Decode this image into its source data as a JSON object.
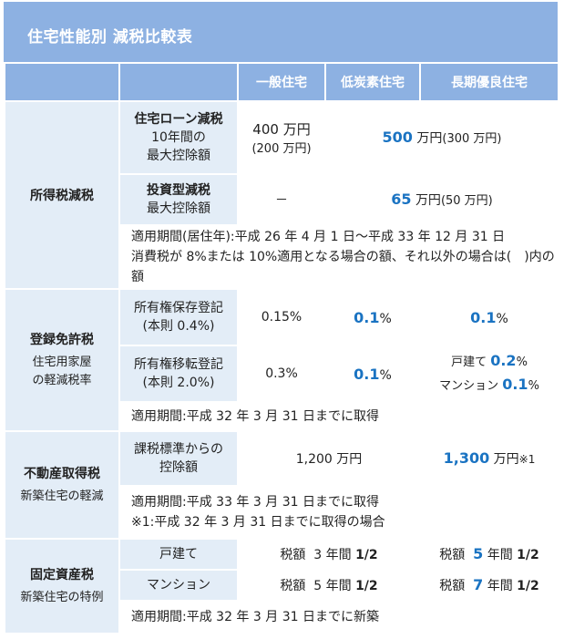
{
  "title": "住宅性能別 減税比較表",
  "headers": [
    "一般住宅",
    "低炭素住宅",
    "長期優良住宅"
  ],
  "income_tax": {
    "category": "所得税減税",
    "loan": {
      "item_title": "住宅ローン減税",
      "item_line2": "10年間の",
      "item_line3": "最大控除額",
      "general_main": "400 万円",
      "general_sub": "(200 万円)",
      "merged_num": "500",
      "merged_unit": "万円",
      "merged_paren": "(300 万円)"
    },
    "invest": {
      "item_title": "投資型減税",
      "item_line2": "最大控除額",
      "general": "－",
      "merged_num": "65",
      "merged_unit": "万円",
      "merged_paren": "(50 万円)"
    },
    "note1": "適用期間(居住年):平成 26 年 4 月 1 日〜平成 33 年 12 月 31 日",
    "note2": "消費税が 8%または 10%適用となる場合の額、それ以外の場合は(　)内の額"
  },
  "registration_tax": {
    "category": "登録免許税",
    "sub1": "住宅用家屋",
    "sub2": "の軽減税率",
    "preservation": {
      "item_line1": "所有権保存登記",
      "item_line2": "(本則 0.4%)",
      "general": "0.15%",
      "lowcarbon_num": "0.1",
      "lowcarbon_unit": "%",
      "longterm_num": "0.1",
      "longterm_unit": "%"
    },
    "transfer": {
      "item_line1": "所有権移転登記",
      "item_line2": "(本則 2.0%)",
      "general": "0.3%",
      "lowcarbon_num": "0.1",
      "lowcarbon_unit": "%",
      "longterm_l1_label": "戸建て",
      "longterm_l1_num": "0.2",
      "longterm_l1_unit": "%",
      "longterm_l2_label": "マンション",
      "longterm_l2_num": "0.1",
      "longterm_l2_unit": "%"
    },
    "note": "適用期間:平成 32 年 3 月 31 日までに取得"
  },
  "acquisition_tax": {
    "category": "不動産取得税",
    "sub": "新築住宅の軽減",
    "item_line1": "課税標準からの",
    "item_line2": "控除額",
    "merged_value": "1,200 万円",
    "longterm_num": "1,300",
    "longterm_unit": "万円",
    "longterm_mark": "※1",
    "note1": "適用期間:平成 33 年 3 月 31 日までに取得",
    "note2": "※1:平成 32 年 3 月 31 日までに取得の場合"
  },
  "property_tax": {
    "category": "固定資産税",
    "sub": "新築住宅の特例",
    "detached": {
      "item": "戸建て",
      "left_prefix": "税額",
      "left_num": "3",
      "left_unit": "年間",
      "left_frac": "1/2",
      "right_prefix": "税額",
      "right_num": "5",
      "right_unit": "年間",
      "right_frac": "1/2"
    },
    "condo": {
      "item": "マンション",
      "left_prefix": "税額",
      "left_num": "5",
      "left_unit": "年間",
      "left_frac": "1/2",
      "right_prefix": "税額",
      "right_num": "7",
      "right_unit": "年間",
      "right_frac": "1/2"
    },
    "note": "適用期間:平成 32 年 3 月 31 日までに新築"
  },
  "colors": {
    "header_bg": "#8db1e2",
    "label_bg": "#e3edf7",
    "accent": "#1a73c2"
  }
}
